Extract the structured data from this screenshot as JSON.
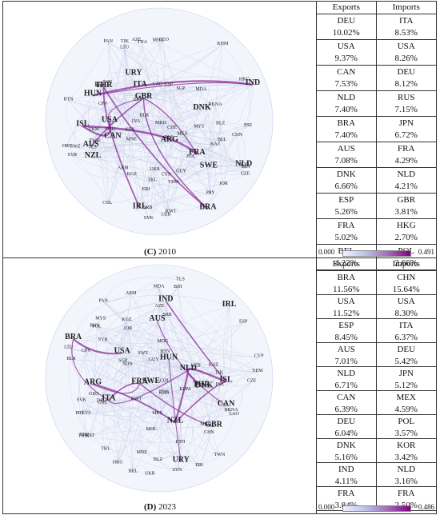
{
  "panels": [
    {
      "caption_letter": "(C)",
      "caption_year": "2010",
      "headers": {
        "exports": "Exports",
        "imports": "Imports"
      },
      "rows": [
        {
          "exp_code": "DEU",
          "exp_pct": "10.02%",
          "imp_code": "ITA",
          "imp_pct": "8.53%"
        },
        {
          "exp_code": "USA",
          "exp_pct": "9.37%",
          "imp_code": "USA",
          "imp_pct": "8.26%"
        },
        {
          "exp_code": "CAN",
          "exp_pct": "7.53%",
          "imp_code": "DEU",
          "imp_pct": "8.12%"
        },
        {
          "exp_code": "NLD",
          "exp_pct": "7.40%",
          "imp_code": "RUS",
          "imp_pct": "7.15%"
        },
        {
          "exp_code": "BRA",
          "exp_pct": "7.40%",
          "imp_code": "JPN",
          "imp_pct": "6.72%"
        },
        {
          "exp_code": "AUS",
          "exp_pct": "7.08%",
          "imp_code": "FRA",
          "imp_pct": "4.29%"
        },
        {
          "exp_code": "DNK",
          "exp_pct": "6.66%",
          "imp_code": "NLD",
          "imp_pct": "4.21%"
        },
        {
          "exp_code": "ESP",
          "exp_pct": "5.26%",
          "imp_code": "GBR",
          "imp_pct": "3.81%"
        },
        {
          "exp_code": "FRA",
          "exp_pct": "5.02%",
          "imp_code": "HKG",
          "imp_pct": "2.70%"
        },
        {
          "exp_code": "BEL",
          "exp_pct": "4.22%",
          "imp_code": "POL",
          "imp_pct": "2.66%"
        }
      ],
      "legend": {
        "min": "0.000",
        "max": "0.491"
      }
    },
    {
      "caption_letter": "(D)",
      "caption_year": "2023",
      "headers": {
        "exports": "Exports",
        "imports": "Imports"
      },
      "rows": [
        {
          "exp_code": "BRA",
          "exp_pct": "11.56%",
          "imp_code": "CHN",
          "imp_pct": "15.64%"
        },
        {
          "exp_code": "USA",
          "exp_pct": "11.52%",
          "imp_code": "USA",
          "imp_pct": "8.30%"
        },
        {
          "exp_code": "ESP",
          "exp_pct": "8.45%",
          "imp_code": "ITA",
          "imp_pct": "6.37%"
        },
        {
          "exp_code": "AUS",
          "exp_pct": "7.01%",
          "imp_code": "DEU",
          "imp_pct": "5.42%"
        },
        {
          "exp_code": "NLD",
          "exp_pct": "6.71%",
          "imp_code": "JPN",
          "imp_pct": "5.12%"
        },
        {
          "exp_code": "CAN",
          "exp_pct": "6.39%",
          "imp_code": "MEX",
          "imp_pct": "4.59%"
        },
        {
          "exp_code": "DEU",
          "exp_pct": "6.04%",
          "imp_code": "POL",
          "imp_pct": "3.57%"
        },
        {
          "exp_code": "DNK",
          "exp_pct": "5.16%",
          "imp_code": "KOR",
          "imp_pct": "3.42%"
        },
        {
          "exp_code": "IND",
          "exp_pct": "4.11%",
          "imp_code": "NLD",
          "imp_pct": "3.16%"
        },
        {
          "exp_code": "FRA",
          "exp_pct": "3.84%",
          "imp_code": "FRA",
          "imp_pct": "2.50%"
        }
      ],
      "legend": {
        "min": "0.000",
        "max": "0.486"
      }
    }
  ],
  "network_nodes": {
    "large": [
      "ISL",
      "FRA",
      "AUS",
      "NLD",
      "THR",
      "IRL",
      "GBR",
      "USA",
      "ITA",
      "HUN",
      "ARG",
      "IND",
      "SWE",
      "DNK",
      "NZL",
      "URY",
      "BRA",
      "CAN"
    ],
    "medium": [
      "CPV",
      "PRY",
      "ARM",
      "BIH",
      "UZB",
      "DEU",
      "SVN",
      "GEO",
      "POL",
      "KEN",
      "BEL",
      "LTU",
      "RKNA",
      "TLS",
      "SYR",
      "TWN",
      "UKR",
      "LAO",
      "SRB",
      "KHM",
      "HKG",
      "MHL",
      "BLR",
      "KGZ",
      "YEM",
      "TJK",
      "SVK",
      "BLZ",
      "MDG",
      "CZE",
      "HRV",
      "ETH",
      "JOR",
      "MDA",
      "MYS",
      "AZE",
      "PAN",
      "KWT",
      "RUS",
      "CHE",
      "BTN",
      "SGP",
      "LVA",
      "ERI",
      "KAZ",
      "CYP",
      "ESP",
      "MKD",
      "EST",
      "MNE",
      "TKM",
      "PSE",
      "SWZ",
      "COL",
      "THA",
      "TKL",
      "SDN",
      "MEX",
      "GUY",
      "CHN"
    ]
  },
  "colors": {
    "edge_light": "#c6cde8",
    "edge_strong": "#8a2b96",
    "node_text": "#222222"
  }
}
